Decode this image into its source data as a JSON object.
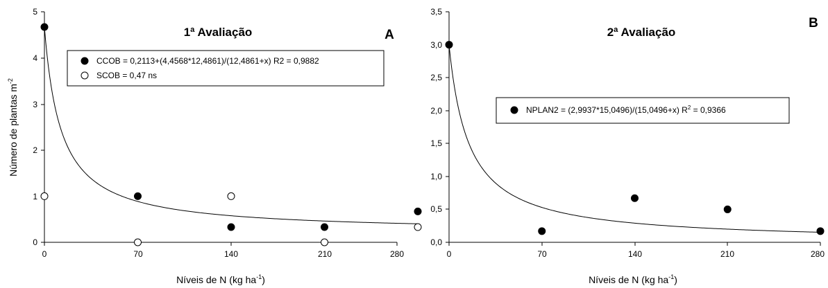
{
  "chart_data": [
    {
      "type": "scatter",
      "panel_letter": "A",
      "title": "1ª Avaliação",
      "xlabel_main": "Níveis de N (kg ha",
      "xlabel_sup": "-1",
      "xlabel_tail": ")",
      "ylabel_main": "Número de plantas m",
      "ylabel_sup": "-2",
      "xlim": [
        0,
        280
      ],
      "ylim": [
        0,
        5
      ],
      "xticks": [
        "0",
        "70",
        "140",
        "210",
        "280"
      ],
      "yticks": [
        "0",
        "1",
        "2",
        "3",
        "4",
        "5"
      ],
      "series": [
        {
          "name": "CCOB = 0,2113+(4,4568*12,4861)/(12,4861+x) R2 = 0,9882",
          "marker": "filled",
          "x": [
            0,
            70,
            140,
            210,
            280
          ],
          "y": [
            4.67,
            1.0,
            0.33,
            0.33,
            0.67
          ]
        },
        {
          "name": "SCOB = 0,47 ns",
          "marker": "open",
          "x": [
            0,
            70,
            140,
            210,
            280
          ],
          "y": [
            1.0,
            0.0,
            1.0,
            0.0,
            0.33
          ]
        }
      ],
      "fit": {
        "a": 0.2113,
        "b": 4.4568,
        "c": 12.4861
      }
    },
    {
      "type": "scatter",
      "panel_letter": "B",
      "title": "2ª Avaliação",
      "xlabel_main": "Níveis de N (kg ha",
      "xlabel_sup": "-1",
      "xlabel_tail": ")",
      "xlim": [
        0,
        280
      ],
      "ylim": [
        0,
        3.5
      ],
      "xticks": [
        "0",
        "70",
        "140",
        "210",
        "280"
      ],
      "yticks": [
        "0,0",
        "0,5",
        "1,0",
        "1,5",
        "2,0",
        "2,5",
        "3,0",
        "3,5"
      ],
      "series": [
        {
          "name_main": "NPLAN2 = (2,9937*15,0496)/(15,0496+x) R",
          "name_sup": "2",
          "name_tail": " = 0,9366",
          "marker": "filled",
          "x": [
            0,
            70,
            140,
            210,
            280
          ],
          "y": [
            3.0,
            0.17,
            0.67,
            0.5,
            0.17
          ]
        }
      ],
      "fit": {
        "a": 0,
        "b": 2.9937,
        "c": 15.0496
      }
    }
  ]
}
